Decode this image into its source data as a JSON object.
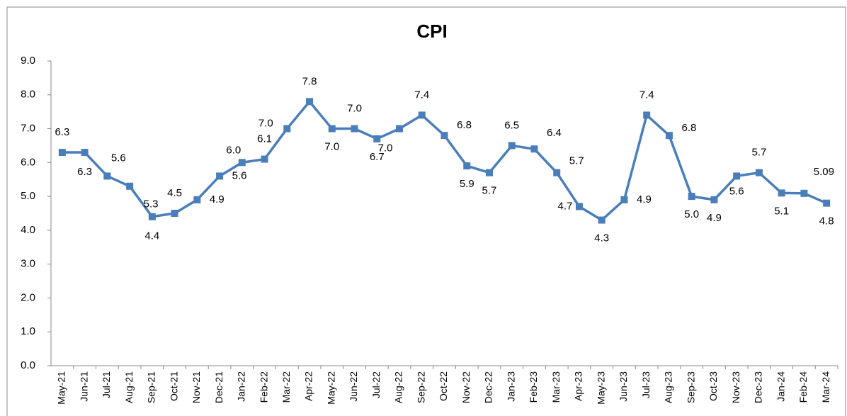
{
  "chart_data": {
    "type": "line",
    "title": "CPI",
    "categories": [
      "May-21",
      "Jun-21",
      "Jul-21",
      "Aug-21",
      "Sep-21",
      "Oct-21",
      "Nov-21",
      "Dec-21",
      "Jan-22",
      "Feb-22",
      "Mar-22",
      "Apr-22",
      "May-22",
      "Jun-22",
      "Jul-22",
      "Aug-22",
      "Sep-22",
      "Oct-22",
      "Nov-22",
      "Dec-22",
      "Jan-23",
      "Feb-23",
      "Mar-23",
      "Apr-23",
      "May-23",
      "Jun-23",
      "Jul-23",
      "Aug-23",
      "Sep-23",
      "Oct-23",
      "Nov-23",
      "Dec-23",
      "Jan-24",
      "Feb-24",
      "Mar-24"
    ],
    "series": [
      {
        "name": "CPI",
        "color": "#4a7ebb",
        "values": [
          6.3,
          6.3,
          5.6,
          5.3,
          4.4,
          4.5,
          4.9,
          5.6,
          6.0,
          6.1,
          7.0,
          7.8,
          7.0,
          7.0,
          6.7,
          7.0,
          7.4,
          6.8,
          5.9,
          5.7,
          6.5,
          6.4,
          5.7,
          4.7,
          4.3,
          4.9,
          7.4,
          6.8,
          5.0,
          4.9,
          5.6,
          5.7,
          5.1,
          5.09,
          4.8
        ],
        "value_labels": [
          "6.3",
          "6.3",
          "5.6",
          "5.3",
          "4.4",
          "4.5",
          "4.9",
          "5.6",
          "6.0",
          "6.1",
          "7.0",
          "7.8",
          "7.0",
          "7.0",
          "6.7",
          "7.0",
          "7.4",
          "6.8",
          "5.9",
          "5.7",
          "6.5",
          "6.4",
          "5.7",
          "4.7",
          "4.3",
          "4.9",
          "7.4",
          "6.8",
          "5.0",
          "4.9",
          "5.6",
          "5.7",
          "5.1",
          "5.09",
          "4.8"
        ]
      }
    ],
    "ylim": [
      0,
      9
    ],
    "yticks": [
      {
        "value": 0,
        "label": "0.0"
      },
      {
        "value": 1,
        "label": "1.0"
      },
      {
        "value": 2,
        "label": "2.0"
      },
      {
        "value": 3,
        "label": "3.0"
      },
      {
        "value": 4,
        "label": "4.0"
      },
      {
        "value": 5,
        "label": "5.0"
      },
      {
        "value": 6,
        "label": "6.0"
      },
      {
        "value": 7,
        "label": "7.0"
      },
      {
        "value": 8,
        "label": "8.0"
      },
      {
        "value": 9,
        "label": "9.0"
      }
    ],
    "grid": false
  }
}
